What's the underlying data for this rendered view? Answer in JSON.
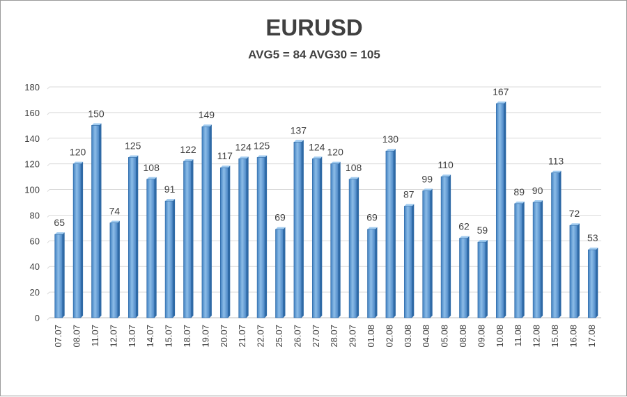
{
  "chart_data": {
    "type": "bar",
    "title": "EURUSD",
    "subtitle": "AVG5 = 84 AVG30 = 105",
    "xlabel": "",
    "ylabel": "",
    "ylim": [
      0,
      180
    ],
    "yticks": [
      0,
      20,
      40,
      60,
      80,
      100,
      120,
      140,
      160,
      180
    ],
    "grid": true,
    "legend": "none",
    "bar_color": "#5b9bd5",
    "categories": [
      "07.07",
      "08.07",
      "11.07",
      "12.07",
      "13.07",
      "14.07",
      "15.07",
      "18.07",
      "19.07",
      "20.07",
      "21.07",
      "22.07",
      "25.07",
      "26.07",
      "27.07",
      "28.07",
      "29.07",
      "01.08",
      "02.08",
      "03.08",
      "04.08",
      "05.08",
      "08.08",
      "09.08",
      "10.08",
      "11.08",
      "12.08",
      "15.08",
      "16.08",
      "17.08"
    ],
    "values": [
      65,
      120,
      150,
      74,
      125,
      108,
      91,
      122,
      149,
      117,
      124,
      125,
      69,
      137,
      124,
      120,
      108,
      69,
      130,
      87,
      99,
      110,
      62,
      59,
      167,
      89,
      90,
      113,
      72,
      53
    ]
  }
}
